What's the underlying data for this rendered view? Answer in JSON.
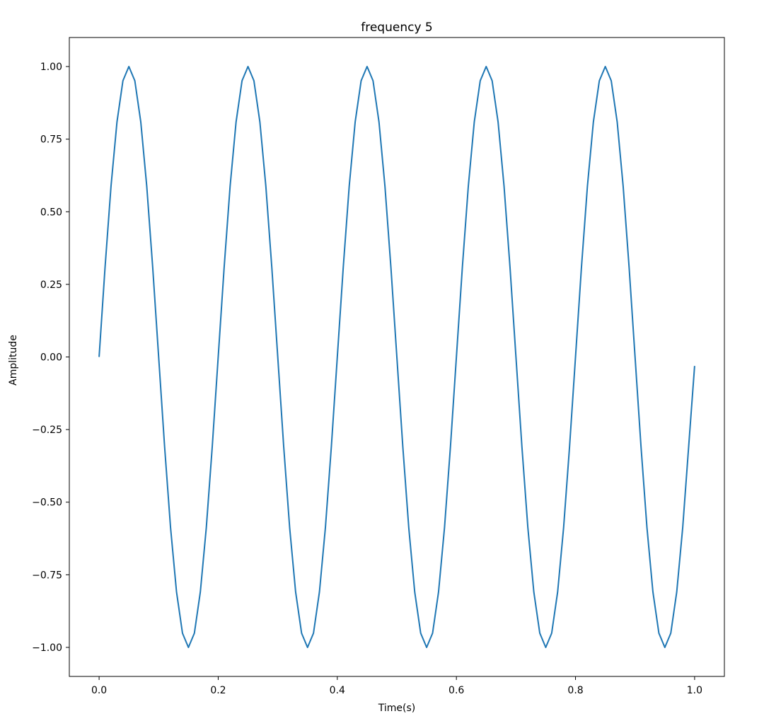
{
  "chart_data": {
    "type": "line",
    "title": "frequency 5",
    "xlabel": "Time(s)",
    "ylabel": "Amplitude",
    "xlim": [
      -0.05,
      1.05
    ],
    "ylim": [
      -1.1,
      1.1
    ],
    "x_ticks": [
      0.0,
      0.2,
      0.4,
      0.6,
      0.8,
      1.0
    ],
    "x_tick_labels": [
      "0.0",
      "0.2",
      "0.4",
      "0.6",
      "0.8",
      "1.0"
    ],
    "y_ticks": [
      1.0,
      0.75,
      0.5,
      0.25,
      0.0,
      -0.25,
      -0.5,
      -0.75,
      -1.0
    ],
    "y_tick_labels": [
      "1.00",
      "0.75",
      "0.50",
      "0.25",
      "0.00",
      "−0.25",
      "−0.50",
      "−0.75",
      "−1.00"
    ],
    "grid": false,
    "legend": false,
    "series": [
      {
        "color": "#1f77b4",
        "x": [
          0.0,
          0.01,
          0.02,
          0.03,
          0.04,
          0.05,
          0.06,
          0.07,
          0.08,
          0.09,
          0.1,
          0.11,
          0.12,
          0.13,
          0.14,
          0.15,
          0.16,
          0.17,
          0.18,
          0.19,
          0.2,
          0.21,
          0.22,
          0.23,
          0.24,
          0.25,
          0.26,
          0.27,
          0.28,
          0.29,
          0.3,
          0.31,
          0.32,
          0.33,
          0.34,
          0.35,
          0.36,
          0.37,
          0.38,
          0.39,
          0.4,
          0.41,
          0.42,
          0.43,
          0.44,
          0.45,
          0.46,
          0.47,
          0.48,
          0.49,
          0.5,
          0.51,
          0.52,
          0.53,
          0.54,
          0.55,
          0.56,
          0.57,
          0.58,
          0.59,
          0.6,
          0.61,
          0.62,
          0.63,
          0.64,
          0.65,
          0.66,
          0.67,
          0.68,
          0.69,
          0.7,
          0.71,
          0.72,
          0.73,
          0.74,
          0.75,
          0.76,
          0.77,
          0.78,
          0.79,
          0.8,
          0.81,
          0.82,
          0.83,
          0.84,
          0.85,
          0.86,
          0.87,
          0.88,
          0.89,
          0.9,
          0.91,
          0.92,
          0.93,
          0.94,
          0.95,
          0.96,
          0.97,
          0.98,
          0.99,
          1.0
        ],
        "y": [
          0.0,
          0.309,
          0.588,
          0.809,
          0.951,
          1.0,
          0.951,
          0.809,
          0.588,
          0.309,
          0.0,
          -0.309,
          -0.588,
          -0.809,
          -0.951,
          -1.0,
          -0.951,
          -0.809,
          -0.588,
          -0.309,
          0.0,
          0.309,
          0.588,
          0.809,
          0.951,
          1.0,
          0.951,
          0.809,
          0.588,
          0.309,
          0.0,
          -0.309,
          -0.588,
          -0.809,
          -0.951,
          -1.0,
          -0.951,
          -0.809,
          -0.588,
          -0.309,
          0.0,
          0.309,
          0.588,
          0.809,
          0.951,
          1.0,
          0.951,
          0.809,
          0.588,
          0.309,
          0.0,
          -0.309,
          -0.588,
          -0.809,
          -0.951,
          -1.0,
          -0.951,
          -0.809,
          -0.588,
          -0.309,
          0.0,
          0.309,
          0.588,
          0.809,
          0.951,
          1.0,
          0.951,
          0.809,
          0.588,
          0.309,
          0.0,
          -0.309,
          -0.588,
          -0.809,
          -0.951,
          -1.0,
          -0.951,
          -0.809,
          -0.588,
          -0.309,
          0.0,
          0.309,
          0.588,
          0.809,
          0.951,
          1.0,
          0.951,
          0.809,
          0.588,
          0.309,
          0.0,
          -0.309,
          -0.588,
          -0.809,
          -0.951,
          -1.0,
          -0.951,
          -0.809,
          -0.588,
          -0.309,
          -0.031
        ]
      }
    ]
  }
}
